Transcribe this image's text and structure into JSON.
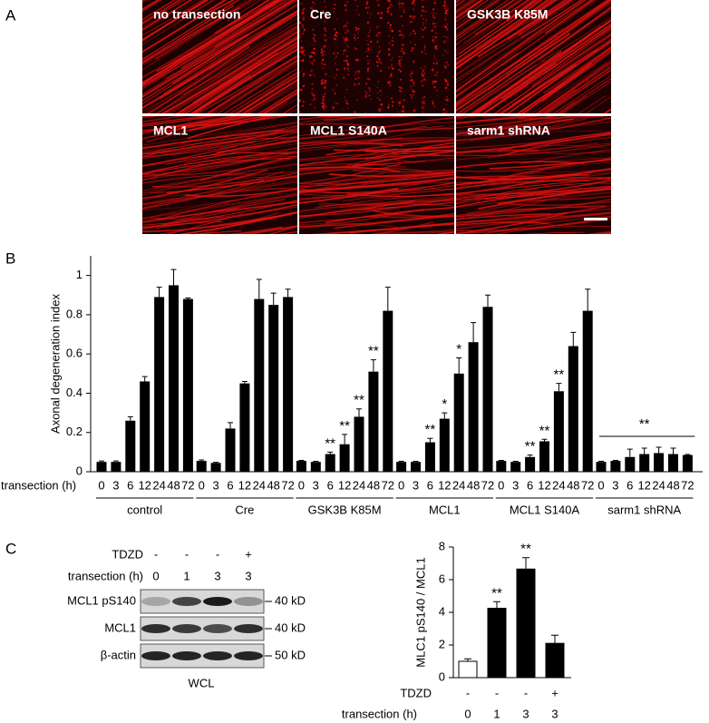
{
  "panel_labels": [
    "A",
    "B",
    "C"
  ],
  "images": [
    "no transection",
    "Cre",
    "GSK3B K85M",
    "MCL1",
    "MCL1 S140A",
    "sarm1 shRNA"
  ],
  "chart_data": [
    {
      "type": "grouped-bar",
      "ylabel": "Axonal degeneration index",
      "xlabel": "transection (h)",
      "categories": [
        "0",
        "3",
        "6",
        "12",
        "24",
        "48",
        "72"
      ],
      "color": "#000000",
      "ylim": [
        0,
        1.1
      ],
      "yticks": [
        0,
        0.2,
        0.4,
        0.6,
        0.8,
        1
      ],
      "groups": [
        {
          "name": "control",
          "values": [
            0.05,
            0.05,
            0.26,
            0.46,
            0.89,
            0.95,
            0.88
          ],
          "errors": [
            0.005,
            0.005,
            0.02,
            0.025,
            0.05,
            0.08,
            0.005
          ],
          "significance": [
            null,
            null,
            null,
            null,
            null,
            null,
            null
          ]
        },
        {
          "name": "Cre",
          "values": [
            0.055,
            0.045,
            0.22,
            0.45,
            0.88,
            0.85,
            0.89
          ],
          "errors": [
            0.005,
            0.003,
            0.03,
            0.01,
            0.1,
            0.06,
            0.04
          ],
          "significance": [
            null,
            null,
            null,
            null,
            null,
            null,
            null
          ]
        },
        {
          "name": "GSK3B K85M",
          "values": [
            0.055,
            0.05,
            0.09,
            0.14,
            0.28,
            0.51,
            0.82
          ],
          "errors": [
            0.003,
            0.003,
            0.01,
            0.05,
            0.04,
            0.06,
            0.12
          ],
          "significance": [
            null,
            null,
            "**",
            "**",
            "**",
            "**",
            null
          ]
        },
        {
          "name": "MCL1",
          "values": [
            0.05,
            0.05,
            0.15,
            0.27,
            0.5,
            0.66,
            0.84
          ],
          "errors": [
            0.003,
            0.003,
            0.02,
            0.03,
            0.08,
            0.1,
            0.06
          ],
          "significance": [
            null,
            null,
            "**",
            "*",
            "*",
            null,
            null
          ]
        },
        {
          "name": "MCL1 S140A",
          "values": [
            0.055,
            0.05,
            0.075,
            0.155,
            0.41,
            0.64,
            0.82
          ],
          "errors": [
            0.003,
            0.003,
            0.01,
            0.01,
            0.04,
            0.07,
            0.11
          ],
          "significance": [
            null,
            null,
            "**",
            "**",
            "**",
            null,
            null
          ]
        },
        {
          "name": "sarm1 shRNA",
          "values": [
            0.05,
            0.055,
            0.075,
            0.09,
            0.095,
            0.09,
            0.085
          ],
          "errors": [
            0.003,
            0.003,
            0.04,
            0.03,
            0.03,
            0.03,
            0.003
          ],
          "significance": [
            null,
            null,
            null,
            null,
            null,
            null,
            null
          ],
          "group_significance": "**"
        }
      ]
    },
    {
      "type": "bar",
      "ylabel": "MLC1 pS140 / MCL1",
      "rows": [
        {
          "label": "TDZD",
          "values": [
            "-",
            "-",
            "-",
            "+"
          ]
        },
        {
          "label": "transection (h)",
          "values": [
            "0",
            "1",
            "3",
            "3"
          ]
        }
      ],
      "values": [
        1.0,
        4.25,
        6.65,
        2.1
      ],
      "errors": [
        0.15,
        0.4,
        0.7,
        0.5
      ],
      "colors": [
        "#ffffff",
        "#000000",
        "#000000",
        "#000000"
      ],
      "significance": [
        null,
        "**",
        "**",
        null
      ],
      "ylim": [
        0,
        8
      ],
      "yticks": [
        0,
        2,
        4,
        6,
        8
      ]
    }
  ],
  "blot": {
    "rows": [
      {
        "label": "TDZD",
        "values": [
          "-",
          "-",
          "-",
          "+"
        ]
      },
      {
        "label": "transection (h)",
        "values": [
          "0",
          "1",
          "3",
          "3"
        ]
      }
    ],
    "bands": [
      {
        "label": "MCL1 pS140",
        "size": "40 kD"
      },
      {
        "label": "MCL1",
        "size": "40 kD"
      },
      {
        "label": "β-actin",
        "size": "50 kD"
      }
    ],
    "lysate": "WCL"
  }
}
